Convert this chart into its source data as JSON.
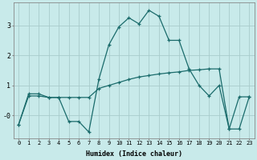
{
  "xlabel": "Humidex (Indice chaleur)",
  "background_color": "#c8eaea",
  "grid_color": "#a8cccc",
  "line_color": "#1a6b6b",
  "x": [
    0,
    1,
    2,
    3,
    4,
    5,
    6,
    7,
    8,
    9,
    10,
    11,
    12,
    13,
    14,
    15,
    16,
    17,
    18,
    19,
    20,
    21,
    22,
    23
  ],
  "line1": [
    -0.3,
    0.72,
    0.72,
    0.6,
    0.6,
    -0.2,
    -0.2,
    -0.55,
    1.2,
    2.35,
    2.95,
    3.25,
    3.05,
    3.5,
    3.3,
    2.5,
    2.5,
    1.55,
    1.0,
    0.65,
    1.0,
    -0.45,
    0.62,
    0.62
  ],
  "line2": [
    -0.3,
    0.65,
    0.65,
    0.6,
    0.6,
    0.6,
    0.6,
    0.6,
    0.9,
    1.0,
    1.1,
    1.2,
    1.28,
    1.33,
    1.38,
    1.42,
    1.45,
    1.5,
    1.52,
    1.55,
    1.55,
    -0.45,
    -0.45,
    0.62
  ],
  "ylim": [
    -0.75,
    3.75
  ],
  "xlim": [
    -0.5,
    23.5
  ],
  "yticks": [
    0,
    1,
    2,
    3
  ],
  "ytick_labels": [
    "-0",
    "1",
    "2",
    "3"
  ],
  "title_fontsize": 7,
  "xlabel_fontsize": 6,
  "xtick_fontsize": 5,
  "ytick_fontsize": 6
}
